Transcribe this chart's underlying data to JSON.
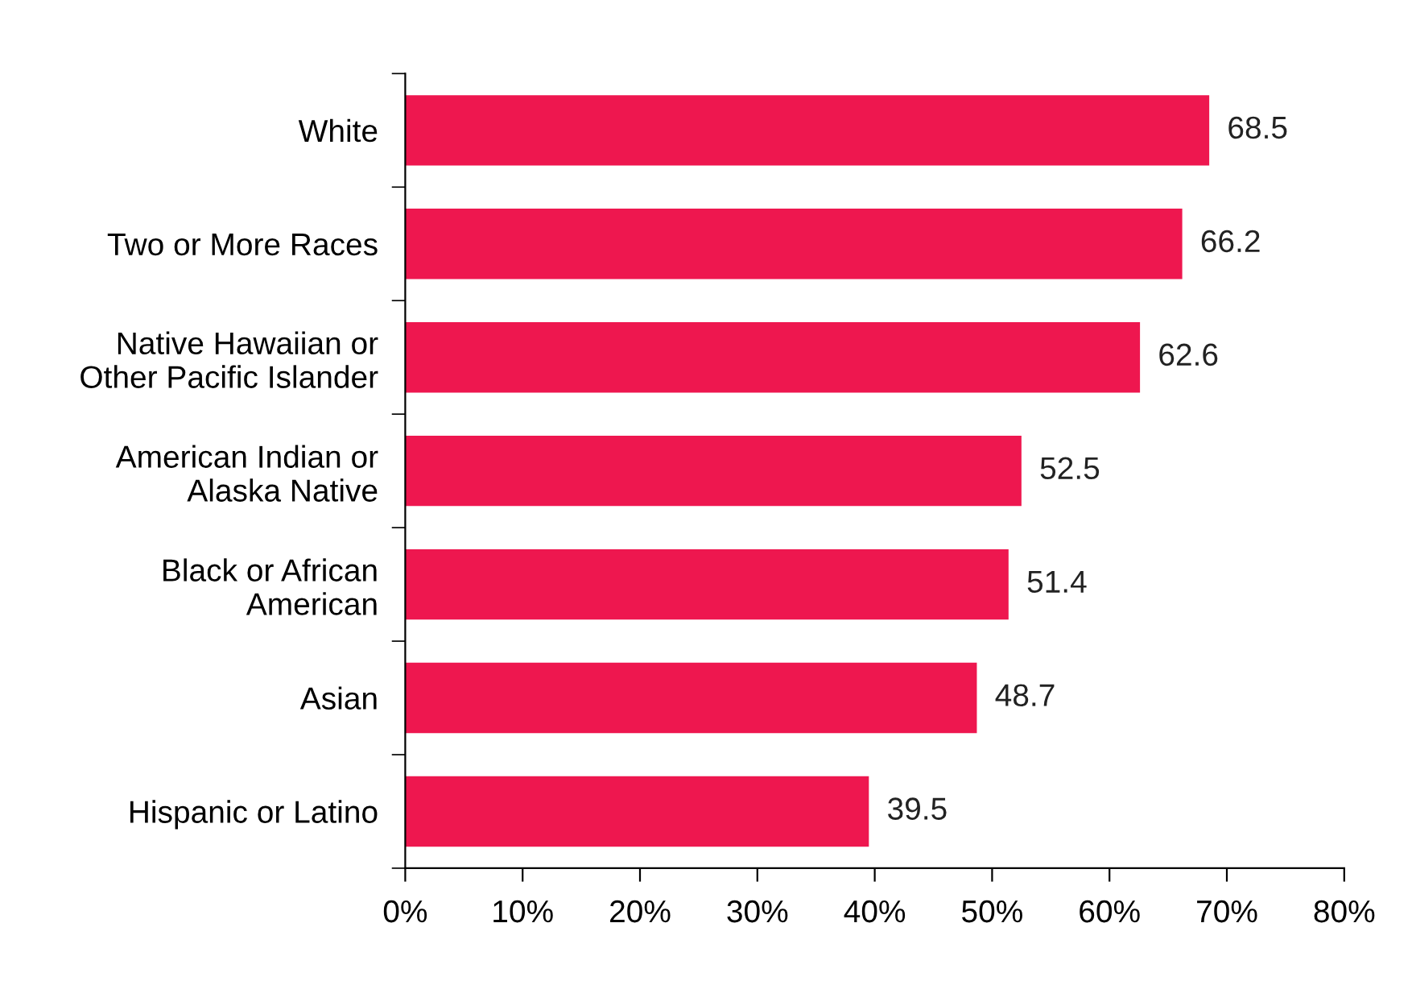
{
  "chart_data": {
    "type": "bar",
    "orientation": "horizontal",
    "categories": [
      "White",
      "Two or More Races",
      "Native Hawaiian or\nOther Pacific Islander",
      "American Indian or\nAlaska Native",
      "Black or African\nAmerican",
      "Asian",
      "Hispanic or Latino"
    ],
    "values": [
      68.5,
      66.2,
      62.6,
      52.5,
      51.4,
      48.7,
      39.5
    ],
    "color": "#ee174f",
    "xlim": [
      0,
      80
    ],
    "xticks": [
      {
        "value": 0,
        "label": "0%"
      },
      {
        "value": 10,
        "label": "10%"
      },
      {
        "value": 20,
        "label": "20%"
      },
      {
        "value": 30,
        "label": "30%"
      },
      {
        "value": 40,
        "label": "40%"
      },
      {
        "value": 50,
        "label": "50%"
      },
      {
        "value": 60,
        "label": "60%"
      },
      {
        "value": 70,
        "label": "70%"
      },
      {
        "value": 80,
        "label": "80%"
      }
    ],
    "data_labels": true,
    "grid": false,
    "legend": false
  }
}
